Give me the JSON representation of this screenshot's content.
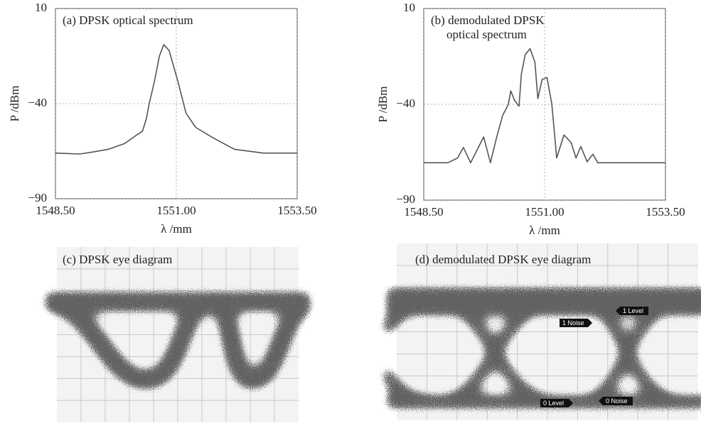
{
  "chart_data": [
    {
      "type": "line",
      "title": [
        "(a) DPSK optical spectrum"
      ],
      "xlabel": "λ /mm",
      "ylabel": "P /dBm",
      "x": [
        1548.5,
        1549.0,
        1549.26,
        1549.6,
        1549.93,
        1550.15,
        1550.3,
        1550.38,
        1550.44,
        1550.55,
        1550.65,
        1550.74,
        1550.85,
        1551.03,
        1551.2,
        1551.4,
        1551.76,
        1552.2,
        1552.8,
        1553.5
      ],
      "values": [
        -66,
        -66.5,
        -65.5,
        -64,
        -61,
        -57,
        -54.5,
        -48,
        -40,
        -28,
        -15,
        -9,
        -12,
        -28,
        -45,
        -52.5,
        -58,
        -64,
        -66,
        -66
      ],
      "xlim": [
        1548.5,
        1553.5
      ],
      "ylim": [
        -90,
        10
      ],
      "xticks": [
        {
          "value": 1548.5,
          "label": "1548.50"
        },
        {
          "value": 1551,
          "label": "1551.00"
        },
        {
          "value": 1553.5,
          "label": "1553.50"
        }
      ],
      "yticks": [
        10,
        {
          "value": -40,
          "label": "−40"
        },
        {
          "value": -90,
          "label": "−90"
        }
      ],
      "color": "#555555",
      "grid": true
    },
    {
      "type": "line",
      "title": [
        "(b) demodulated DPSK",
        "optical spectrum"
      ],
      "xlabel": "λ /mm",
      "ylabel": "P /dBm",
      "x": [
        1548.5,
        1549.0,
        1549.2,
        1549.32,
        1549.47,
        1549.6,
        1549.74,
        1549.88,
        1550.0,
        1550.13,
        1550.25,
        1550.3,
        1550.38,
        1550.47,
        1550.52,
        1550.6,
        1550.7,
        1550.8,
        1550.86,
        1550.95,
        1551.05,
        1551.15,
        1551.25,
        1551.4,
        1551.55,
        1551.65,
        1551.75,
        1551.88,
        1552.0,
        1552.1,
        1553.5
      ],
      "values": [
        -70.5,
        -70.5,
        -68,
        -62.5,
        -70.5,
        -64,
        -57,
        -70.5,
        -58,
        -46,
        -40,
        -33,
        -38,
        -41,
        -24,
        -14,
        -11,
        -18,
        -37,
        -27,
        -26,
        -40,
        -68,
        -56,
        -60,
        -68,
        -62,
        -70,
        -66,
        -70.5,
        -70.5
      ],
      "xlim": [
        1548.5,
        1553.5
      ],
      "ylim": [
        -90,
        10
      ],
      "xticks": [
        {
          "value": 1548.5,
          "label": "1548.50"
        },
        {
          "value": 1551,
          "label": "1551.00"
        },
        {
          "value": 1553.5,
          "label": "1553.50"
        }
      ],
      "yticks": [
        10,
        {
          "value": -40,
          "label": "−40"
        },
        {
          "value": -90,
          "label": "−90"
        }
      ],
      "color": "#555555",
      "grid": true
    }
  ],
  "eye_diagrams": [
    {
      "title": "(c) DPSK eye diagram"
    },
    {
      "title": "(d) demodulated DPSK eye diagram",
      "markers": [
        "1 Noise",
        "1 Level",
        "0 Level",
        "0 Noise"
      ]
    }
  ]
}
